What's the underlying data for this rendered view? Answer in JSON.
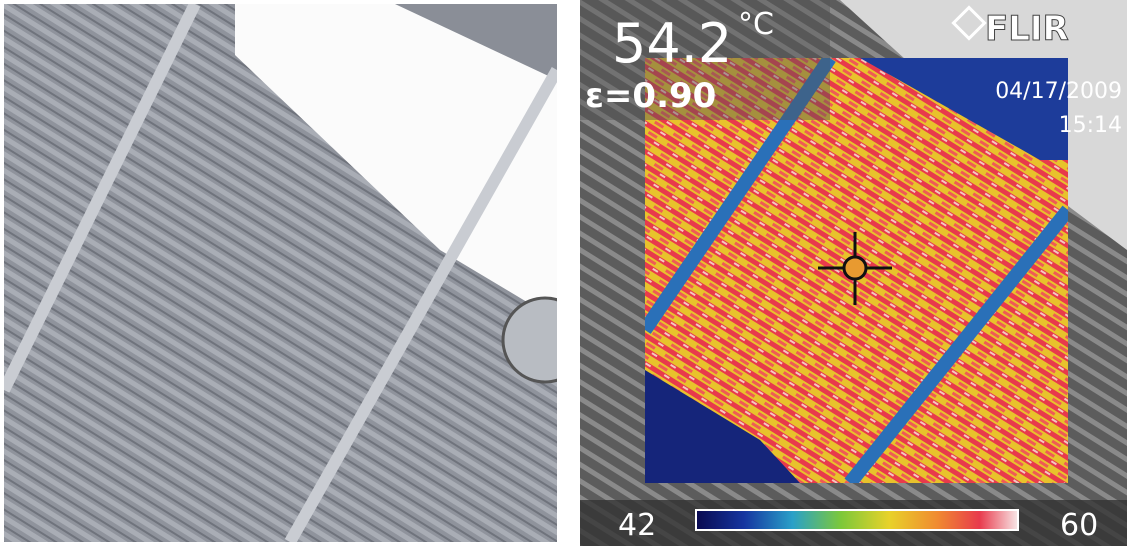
{
  "thermal_overlay": {
    "spot_temperature": "54.2",
    "unit": "°C",
    "emissivity": "ε=0.90",
    "brand": "FLIR",
    "date": "04/17/2009",
    "time": "15:14",
    "scale_min": "42",
    "scale_max": "60"
  }
}
